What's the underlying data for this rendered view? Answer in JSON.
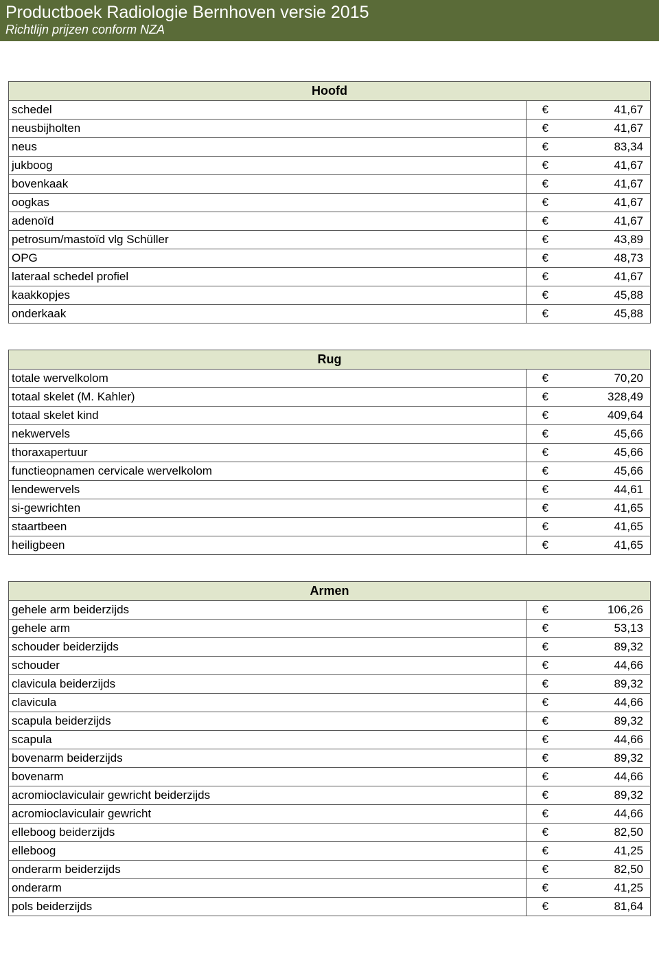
{
  "header": {
    "title": "Productboek Radiologie Bernhoven versie 2015",
    "subtitle": "Richtlijn prijzen conform NZA"
  },
  "currency": "€",
  "sections": [
    {
      "title": "Hoofd",
      "rows": [
        [
          "schedel",
          "41,67"
        ],
        [
          "neusbijholten",
          "41,67"
        ],
        [
          "neus",
          "83,34"
        ],
        [
          "jukboog",
          "41,67"
        ],
        [
          "bovenkaak",
          "41,67"
        ],
        [
          "oogkas",
          "41,67"
        ],
        [
          "adenoïd",
          "41,67"
        ],
        [
          "petrosum/mastoïd vlg Schüller",
          "43,89"
        ],
        [
          "OPG",
          "48,73"
        ],
        [
          "lateraal schedel profiel",
          "41,67"
        ],
        [
          "kaakkopjes",
          "45,88"
        ],
        [
          "onderkaak",
          "45,88"
        ]
      ]
    },
    {
      "title": "Rug",
      "rows": [
        [
          "totale wervelkolom",
          "70,20"
        ],
        [
          "totaal skelet (M. Kahler)",
          "328,49"
        ],
        [
          "totaal skelet kind",
          "409,64"
        ],
        [
          "nekwervels",
          "45,66"
        ],
        [
          "thoraxapertuur",
          "45,66"
        ],
        [
          "functieopnamen cervicale wervelkolom",
          "45,66"
        ],
        [
          "lendewervels",
          "44,61"
        ],
        [
          "si-gewrichten",
          "41,65"
        ],
        [
          "staartbeen",
          "41,65"
        ],
        [
          "heiligbeen",
          "41,65"
        ]
      ]
    },
    {
      "title": "Armen",
      "rows": [
        [
          "gehele arm beiderzijds",
          "106,26"
        ],
        [
          "gehele arm",
          "53,13"
        ],
        [
          "schouder beiderzijds",
          "89,32"
        ],
        [
          "schouder",
          "44,66"
        ],
        [
          "clavicula beiderzijds",
          "89,32"
        ],
        [
          "clavicula",
          "44,66"
        ],
        [
          "scapula beiderzijds",
          "89,32"
        ],
        [
          "scapula",
          "44,66"
        ],
        [
          "bovenarm beiderzijds",
          "89,32"
        ],
        [
          "bovenarm",
          "44,66"
        ],
        [
          "acromioclaviculair gewricht beiderzijds",
          "89,32"
        ],
        [
          "acromioclaviculair gewricht",
          "44,66"
        ],
        [
          "elleboog beiderzijds",
          "82,50"
        ],
        [
          "elleboog",
          "41,25"
        ],
        [
          "onderarm beiderzijds",
          "82,50"
        ],
        [
          "onderarm",
          "41,25"
        ],
        [
          "pols beiderzijds",
          "81,64"
        ]
      ]
    }
  ]
}
